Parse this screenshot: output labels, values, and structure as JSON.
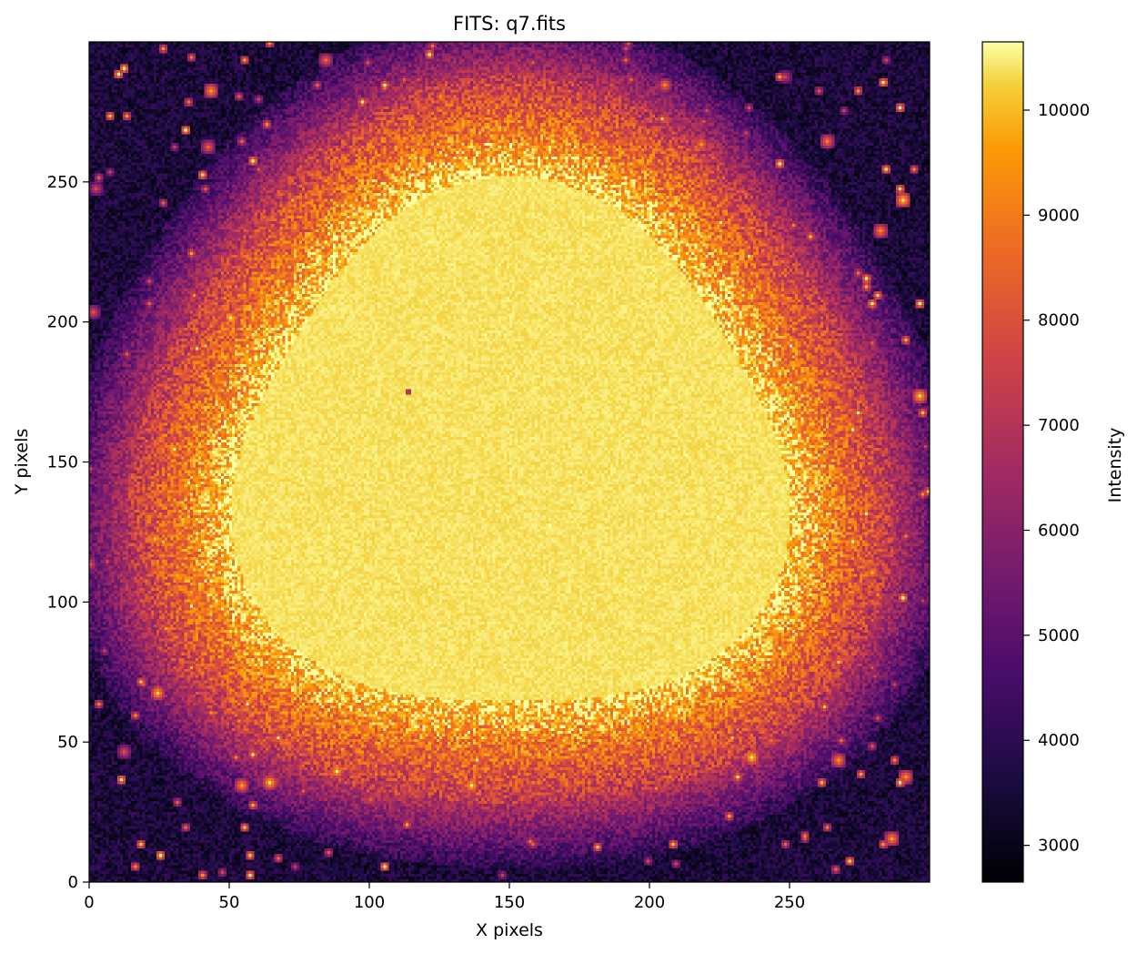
{
  "chart_data": {
    "type": "heatmap",
    "title": "FITS: q7.fits",
    "xlabel": "X pixels",
    "ylabel": "Y pixels",
    "colorbar_label": "Intensity",
    "colormap": "inferno",
    "image_shape": [
      300,
      300
    ],
    "xlim": [
      0,
      300
    ],
    "ylim": [
      0,
      300
    ],
    "x_ticks": [
      0,
      50,
      100,
      150,
      200,
      250
    ],
    "y_ticks": [
      0,
      50,
      100,
      150,
      200,
      250
    ],
    "vmin": 2650,
    "vmax": 10650,
    "colorbar_ticks": [
      3000,
      4000,
      5000,
      6000,
      7000,
      8000,
      9000,
      10000
    ],
    "grid": false,
    "legend": "none",
    "features": {
      "nebula": {
        "center_x": 150,
        "center_y": 150,
        "radius_x": 135,
        "radius_y": 130,
        "core_value": 10400,
        "shell_value": 8800
      },
      "background_value": 3600,
      "star_count": 420,
      "dark_pixel": {
        "x": 113,
        "y": 174,
        "value": 7000
      }
    }
  }
}
